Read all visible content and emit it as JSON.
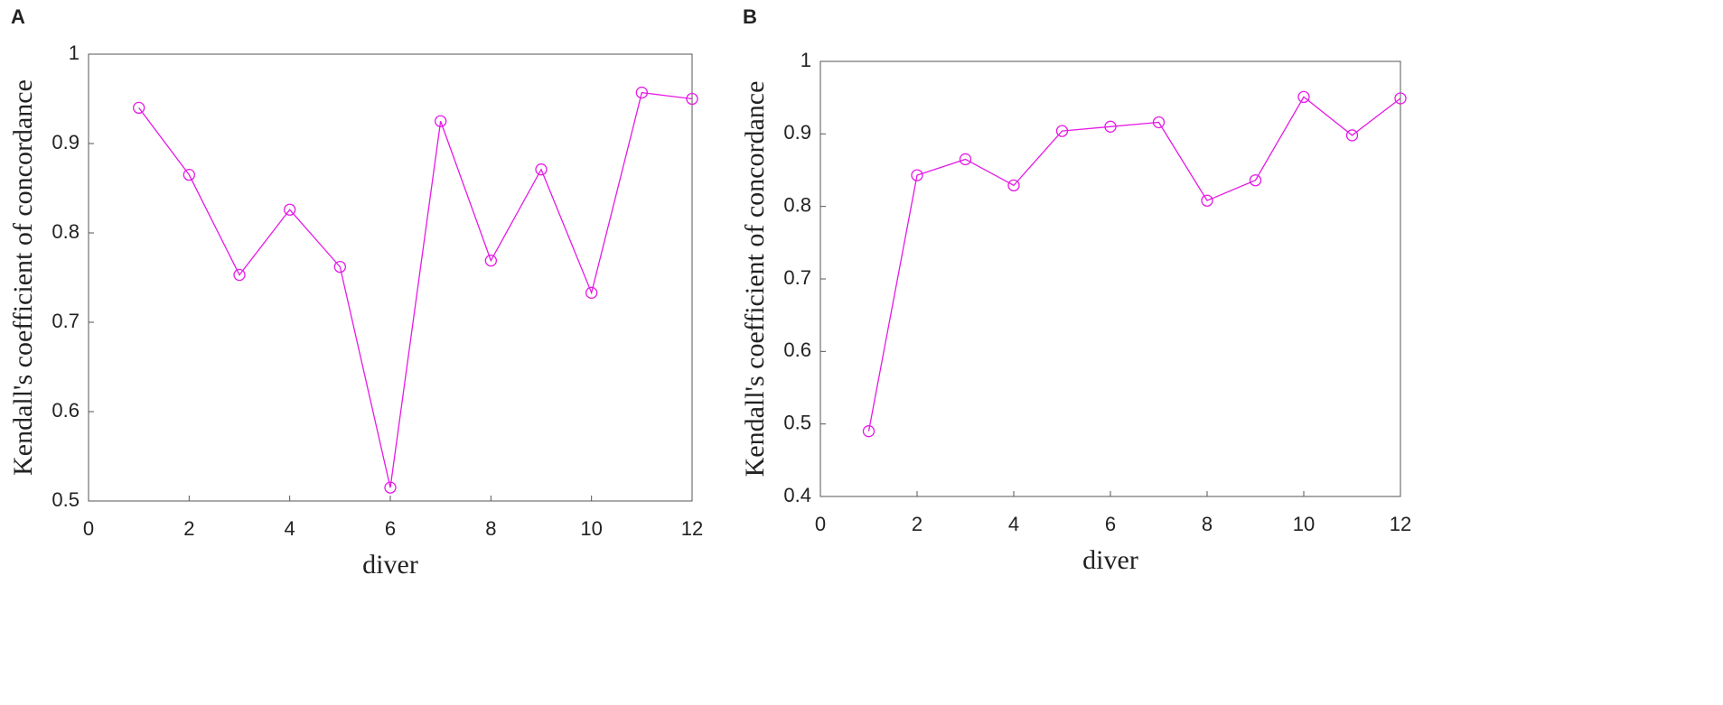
{
  "chart_data": [
    {
      "type": "line",
      "label": "A",
      "xlabel": "diver",
      "ylabel": "Kendall's coefficient of concordance",
      "x": [
        1,
        2,
        3,
        4,
        5,
        6,
        7,
        8,
        9,
        10,
        11,
        12
      ],
      "series": [
        {
          "color": "#e619e6",
          "values": [
            0.94,
            0.865,
            0.753,
            0.826,
            0.762,
            0.515,
            0.925,
            0.769,
            0.871,
            0.733,
            0.957,
            0.95
          ]
        }
      ],
      "xlim": [
        0,
        12
      ],
      "xticks": [
        0,
        2,
        4,
        6,
        8,
        10,
        12
      ],
      "ylim": [
        0.5,
        1
      ],
      "yticks": [
        0.5,
        0.6,
        0.7,
        0.8,
        0.9,
        1
      ]
    },
    {
      "type": "line",
      "label": "B",
      "xlabel": "diver",
      "ylabel": "Kendall's coefficient of concordance",
      "x": [
        1,
        2,
        3,
        4,
        5,
        6,
        7,
        8,
        9,
        10,
        11,
        12
      ],
      "series": [
        {
          "color": "#e619e6",
          "values": [
            0.49,
            0.843,
            0.865,
            0.829,
            0.904,
            0.91,
            0.916,
            0.808,
            0.836,
            0.951,
            0.898,
            0.949
          ]
        }
      ],
      "xlim": [
        0,
        12
      ],
      "xticks": [
        0,
        2,
        4,
        6,
        8,
        10,
        12
      ],
      "ylim": [
        0.4,
        1
      ],
      "yticks": [
        0.4,
        0.5,
        0.6,
        0.7,
        0.8,
        0.9,
        1
      ]
    }
  ]
}
